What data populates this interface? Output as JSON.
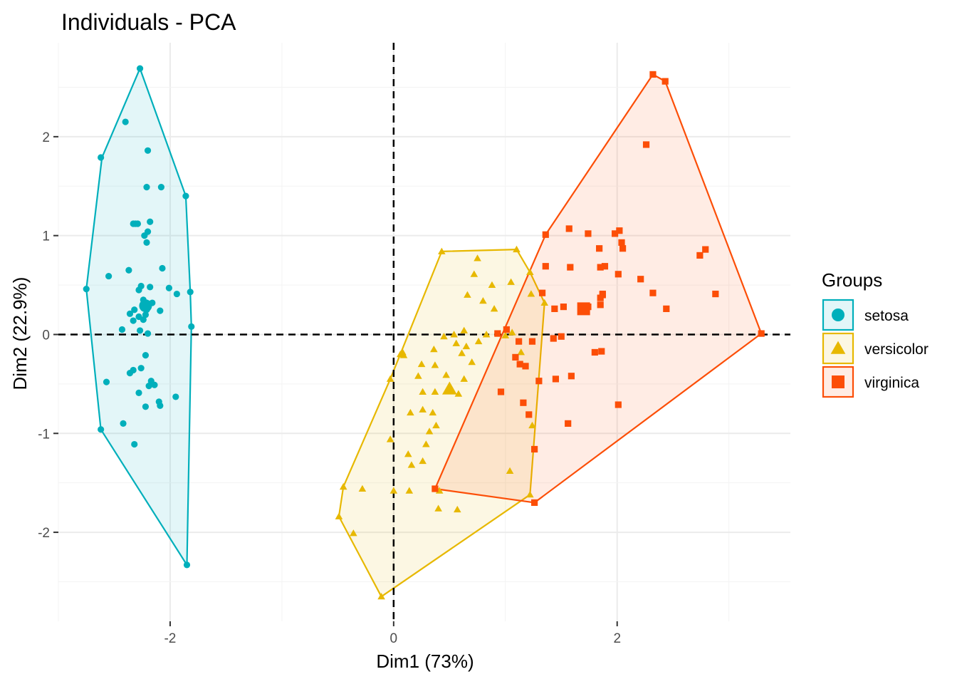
{
  "chart_data": {
    "type": "scatter",
    "title": "Individuals - PCA",
    "xlabel": "Dim1 (73%)",
    "ylabel": "Dim2 (22.9%)",
    "xlim": [
      -3.0,
      3.55
    ],
    "ylim": [
      -2.9,
      2.95
    ],
    "x_ticks": [
      -2,
      0,
      2
    ],
    "x_tick_labels": [
      "-2",
      "0",
      "2"
    ],
    "y_ticks": [
      -2,
      -1,
      0,
      1,
      2
    ],
    "y_tick_labels": [
      "-2",
      "-1",
      "0",
      "1",
      "2"
    ],
    "grid": true,
    "reference_lines": {
      "x": 0,
      "y": 0
    },
    "legend": {
      "title": "Groups",
      "position": "right"
    },
    "series": [
      {
        "name": "setosa",
        "marker": "circle",
        "color": "#00AFBB",
        "centroid": [
          -2.22,
          0.29
        ],
        "hull": [
          [
            -2.27,
            2.69
          ],
          [
            -1.86,
            1.4
          ],
          [
            -1.82,
            0.43
          ],
          [
            -1.81,
            0.08
          ],
          [
            -1.85,
            -2.33
          ],
          [
            -2.62,
            -0.96
          ],
          [
            -2.75,
            0.46
          ],
          [
            -2.61,
            1.79
          ]
        ],
        "points": [
          [
            -2.27,
            2.69
          ],
          [
            -2.2,
            1.86
          ],
          [
            -2.62,
            1.79
          ],
          [
            -2.4,
            2.15
          ],
          [
            -2.08,
            1.49
          ],
          [
            -2.21,
            1.49
          ],
          [
            -1.86,
            1.4
          ],
          [
            -2.31,
            1.12
          ],
          [
            -2.33,
            1.12
          ],
          [
            -2.29,
            1.12
          ],
          [
            -2.18,
            1.14
          ],
          [
            -2.2,
            1.04
          ],
          [
            -2.23,
            1.0
          ],
          [
            -2.21,
            0.93
          ],
          [
            -2.07,
            0.67
          ],
          [
            -2.37,
            0.65
          ],
          [
            -2.55,
            0.59
          ],
          [
            -2.01,
            0.47
          ],
          [
            -1.94,
            0.41
          ],
          [
            -1.82,
            0.43
          ],
          [
            -2.75,
            0.46
          ],
          [
            -2.26,
            0.49
          ],
          [
            -2.28,
            0.45
          ],
          [
            -2.18,
            0.48
          ],
          [
            -2.24,
            0.35
          ],
          [
            -2.2,
            0.28
          ],
          [
            -2.16,
            0.32
          ],
          [
            -2.21,
            0.25
          ],
          [
            -2.32,
            0.25
          ],
          [
            -2.09,
            0.24
          ],
          [
            -2.36,
            0.21
          ],
          [
            -2.22,
            0.2
          ],
          [
            -2.24,
            0.15
          ],
          [
            -2.28,
            0.18
          ],
          [
            -2.33,
            0.14
          ],
          [
            -1.81,
            0.08
          ],
          [
            -2.43,
            0.05
          ],
          [
            -2.2,
            0.01
          ],
          [
            -2.27,
            0.04
          ],
          [
            -2.22,
            -0.21
          ],
          [
            -2.26,
            -0.34
          ],
          [
            -2.33,
            -0.36
          ],
          [
            -2.36,
            -0.39
          ],
          [
            -2.17,
            -0.47
          ],
          [
            -2.19,
            -0.52
          ],
          [
            -2.57,
            -0.48
          ],
          [
            -2.28,
            -0.59
          ],
          [
            -2.14,
            -0.51
          ],
          [
            -2.1,
            -0.68
          ],
          [
            -2.09,
            -0.72
          ],
          [
            -1.95,
            -0.63
          ],
          [
            -2.22,
            -0.73
          ],
          [
            -2.42,
            -0.9
          ],
          [
            -2.62,
            -0.96
          ],
          [
            -2.32,
            -1.11
          ],
          [
            -1.85,
            -2.33
          ]
        ]
      },
      {
        "name": "versicolor",
        "marker": "triangle",
        "color": "#E7B800",
        "centroid": [
          0.5,
          -0.55
        ],
        "hull": [
          [
            0.43,
            0.84
          ],
          [
            1.1,
            0.86
          ],
          [
            1.22,
            0.63
          ],
          [
            1.35,
            0.32
          ],
          [
            1.22,
            -1.62
          ],
          [
            -0.11,
            -2.65
          ],
          [
            -0.49,
            -1.84
          ],
          [
            -0.45,
            -1.54
          ],
          [
            -0.03,
            -0.45
          ]
        ],
        "points": [
          [
            0.43,
            0.84
          ],
          [
            0.75,
            0.77
          ],
          [
            1.1,
            0.86
          ],
          [
            0.72,
            0.61
          ],
          [
            1.22,
            0.63
          ],
          [
            0.88,
            0.5
          ],
          [
            1.05,
            0.53
          ],
          [
            0.66,
            0.4
          ],
          [
            0.8,
            0.34
          ],
          [
            1.35,
            0.32
          ],
          [
            1.23,
            0.41
          ],
          [
            0.9,
            0.26
          ],
          [
            0.63,
            0.04
          ],
          [
            0.83,
            0.0
          ],
          [
            0.54,
            0.0
          ],
          [
            0.45,
            -0.02
          ],
          [
            1.0,
            -0.01
          ],
          [
            0.56,
            -0.09
          ],
          [
            0.65,
            -0.12
          ],
          [
            0.36,
            -0.15
          ],
          [
            0.76,
            -0.07
          ],
          [
            1.06,
            0.02
          ],
          [
            1.14,
            -0.18
          ],
          [
            0.61,
            -0.19
          ],
          [
            0.37,
            -0.31
          ],
          [
            0.7,
            -0.28
          ],
          [
            0.25,
            -0.3
          ],
          [
            0.08,
            -0.18
          ],
          [
            0.06,
            -0.2
          ],
          [
            0.09,
            -0.21
          ],
          [
            0.47,
            -0.41
          ],
          [
            0.63,
            -0.45
          ],
          [
            0.22,
            -0.42
          ],
          [
            -0.03,
            -0.45
          ],
          [
            0.37,
            -0.58
          ],
          [
            0.58,
            -0.6
          ],
          [
            0.51,
            -0.55
          ],
          [
            0.26,
            -0.58
          ],
          [
            0.26,
            -0.76
          ],
          [
            0.15,
            -0.79
          ],
          [
            0.35,
            -0.79
          ],
          [
            0.38,
            -0.92
          ],
          [
            0.32,
            -0.98
          ],
          [
            0.29,
            -1.11
          ],
          [
            0.13,
            -1.21
          ],
          [
            -0.03,
            -1.06
          ],
          [
            0.26,
            -1.28
          ],
          [
            0.16,
            -1.32
          ],
          [
            0.0,
            -1.58
          ],
          [
            0.14,
            -1.58
          ],
          [
            0.41,
            -1.58
          ],
          [
            -0.45,
            -1.54
          ],
          [
            -0.28,
            -1.56
          ],
          [
            0.4,
            -1.76
          ],
          [
            0.57,
            -1.77
          ],
          [
            -0.49,
            -1.84
          ],
          [
            -0.36,
            -2.01
          ],
          [
            1.04,
            -1.38
          ],
          [
            1.22,
            -1.62
          ],
          [
            1.24,
            -0.92
          ],
          [
            -0.11,
            -2.65
          ]
        ]
      },
      {
        "name": "virginica",
        "marker": "square",
        "color": "#FC4E07",
        "centroid": [
          1.7,
          0.26
        ],
        "hull": [
          [
            2.32,
            2.63
          ],
          [
            2.43,
            2.56
          ],
          [
            3.29,
            0.01
          ],
          [
            1.26,
            -1.7
          ],
          [
            0.37,
            -1.56
          ],
          [
            1.36,
            1.01
          ]
        ],
        "points": [
          [
            2.32,
            2.63
          ],
          [
            2.43,
            2.56
          ],
          [
            2.26,
            1.92
          ],
          [
            1.36,
            1.01
          ],
          [
            1.57,
            1.07
          ],
          [
            1.74,
            1.02
          ],
          [
            2.02,
            1.05
          ],
          [
            1.98,
            1.02
          ],
          [
            1.84,
            0.87
          ],
          [
            2.04,
            0.93
          ],
          [
            2.05,
            0.87
          ],
          [
            2.79,
            0.86
          ],
          [
            2.74,
            0.8
          ],
          [
            1.89,
            0.69
          ],
          [
            1.85,
            0.68
          ],
          [
            1.58,
            0.68
          ],
          [
            1.36,
            0.69
          ],
          [
            2.01,
            0.61
          ],
          [
            2.21,
            0.56
          ],
          [
            1.87,
            0.41
          ],
          [
            1.87,
            0.4
          ],
          [
            2.32,
            0.42
          ],
          [
            2.88,
            0.41
          ],
          [
            1.33,
            0.42
          ],
          [
            1.85,
            0.37
          ],
          [
            1.85,
            0.3
          ],
          [
            1.52,
            0.28
          ],
          [
            1.44,
            0.26
          ],
          [
            1.69,
            0.25
          ],
          [
            1.74,
            0.28
          ],
          [
            2.44,
            0.26
          ],
          [
            3.29,
            0.01
          ],
          [
            1.01,
            0.05
          ],
          [
            0.93,
            0.01
          ],
          [
            1.12,
            -0.07
          ],
          [
            1.24,
            -0.07
          ],
          [
            1.43,
            -0.04
          ],
          [
            1.5,
            -0.02
          ],
          [
            1.8,
            -0.18
          ],
          [
            1.86,
            -0.17
          ],
          [
            1.09,
            -0.23
          ],
          [
            1.13,
            -0.3
          ],
          [
            1.18,
            -0.32
          ],
          [
            1.3,
            -0.47
          ],
          [
            1.45,
            -0.45
          ],
          [
            1.59,
            -0.42
          ],
          [
            0.96,
            -0.58
          ],
          [
            1.16,
            -0.69
          ],
          [
            1.21,
            -0.81
          ],
          [
            2.01,
            -0.71
          ],
          [
            1.56,
            -0.9
          ],
          [
            1.26,
            -1.16
          ],
          [
            0.37,
            -1.56
          ],
          [
            1.26,
            -1.7
          ]
        ]
      }
    ]
  }
}
